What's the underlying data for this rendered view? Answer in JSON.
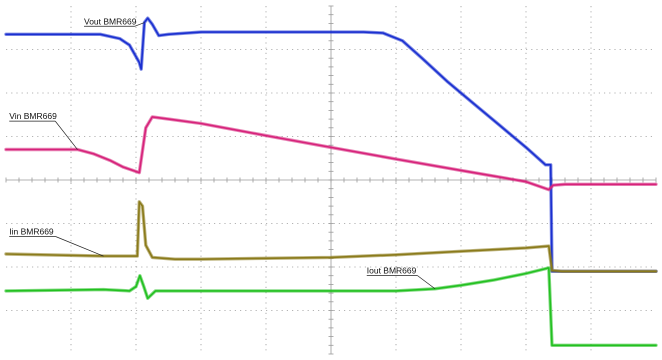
{
  "chart_data": {
    "type": "line",
    "title": "",
    "xlabel": "",
    "ylabel": "",
    "xlim": [
      0,
      10
    ],
    "ylim": [
      -4,
      4
    ],
    "grid": true,
    "grid_divisions": {
      "x": 10,
      "y": 8
    },
    "background": "#ffffff",
    "grid_color": "#9a9a9a",
    "series": [
      {
        "name": "Vout BMR669",
        "color": "#1a2fd0",
        "label_anchor": [
          1.2,
          3.58
        ],
        "points": [
          [
            0,
            3.35
          ],
          [
            1.45,
            3.35
          ],
          [
            1.75,
            3.25
          ],
          [
            1.9,
            3.1
          ],
          [
            2.05,
            2.7
          ],
          [
            2.08,
            2.55
          ],
          [
            2.13,
            3.62
          ],
          [
            2.18,
            3.72
          ],
          [
            2.25,
            3.58
          ],
          [
            2.35,
            3.32
          ],
          [
            2.5,
            3.35
          ],
          [
            3,
            3.4
          ],
          [
            4,
            3.4
          ],
          [
            5,
            3.4
          ],
          [
            5.5,
            3.4
          ],
          [
            5.8,
            3.38
          ],
          [
            6.1,
            3.2
          ],
          [
            6.4,
            2.8
          ],
          [
            6.8,
            2.25
          ],
          [
            7.2,
            1.75
          ],
          [
            7.6,
            1.25
          ],
          [
            8,
            0.75
          ],
          [
            8.3,
            0.35
          ],
          [
            8.38,
            0.35
          ],
          [
            8.4,
            -2.1
          ],
          [
            8.5,
            -2.1
          ],
          [
            10,
            -2.1
          ]
        ]
      },
      {
        "name": "Vin BMR669",
        "color": "#d6227a",
        "label_anchor": [
          0.05,
          1.4
        ],
        "points": [
          [
            0,
            0.7
          ],
          [
            1.1,
            0.7
          ],
          [
            1.35,
            0.6
          ],
          [
            1.6,
            0.45
          ],
          [
            1.8,
            0.3
          ],
          [
            2.05,
            0.17
          ],
          [
            2.15,
            1.2
          ],
          [
            2.25,
            1.45
          ],
          [
            2.5,
            1.4
          ],
          [
            3,
            1.3
          ],
          [
            4,
            1.02
          ],
          [
            5,
            0.75
          ],
          [
            6,
            0.48
          ],
          [
            7,
            0.22
          ],
          [
            8,
            -0.04
          ],
          [
            8.35,
            -0.22
          ],
          [
            8.42,
            -0.12
          ],
          [
            8.6,
            -0.1
          ],
          [
            10,
            -0.1
          ]
        ]
      },
      {
        "name": "Iin BMR669",
        "color": "#8a7a1a",
        "label_anchor": [
          0.05,
          -1.25
        ],
        "points": [
          [
            0,
            -1.7
          ],
          [
            1.5,
            -1.75
          ],
          [
            2.02,
            -1.75
          ],
          [
            2.05,
            -0.5
          ],
          [
            2.1,
            -0.6
          ],
          [
            2.15,
            -1.5
          ],
          [
            2.25,
            -1.78
          ],
          [
            2.6,
            -1.82
          ],
          [
            3,
            -1.82
          ],
          [
            4,
            -1.8
          ],
          [
            5,
            -1.78
          ],
          [
            6,
            -1.72
          ],
          [
            7,
            -1.64
          ],
          [
            8,
            -1.56
          ],
          [
            8.35,
            -1.52
          ],
          [
            8.4,
            -2.08
          ],
          [
            8.55,
            -2.1
          ],
          [
            10,
            -2.1
          ]
        ]
      },
      {
        "name": "Iout BMR669",
        "color": "#22c020",
        "label_anchor": [
          5.55,
          -2.15
        ],
        "points": [
          [
            0,
            -2.55
          ],
          [
            1.5,
            -2.52
          ],
          [
            1.9,
            -2.55
          ],
          [
            2,
            -2.45
          ],
          [
            2.06,
            -2.2
          ],
          [
            2.12,
            -2.45
          ],
          [
            2.18,
            -2.72
          ],
          [
            2.3,
            -2.55
          ],
          [
            3,
            -2.55
          ],
          [
            4,
            -2.55
          ],
          [
            5,
            -2.55
          ],
          [
            6,
            -2.55
          ],
          [
            6.6,
            -2.5
          ],
          [
            7,
            -2.42
          ],
          [
            7.5,
            -2.3
          ],
          [
            8,
            -2.15
          ],
          [
            8.35,
            -2.02
          ],
          [
            8.4,
            -3.8
          ],
          [
            8.6,
            -3.8
          ],
          [
            10,
            -3.8
          ]
        ]
      }
    ]
  }
}
